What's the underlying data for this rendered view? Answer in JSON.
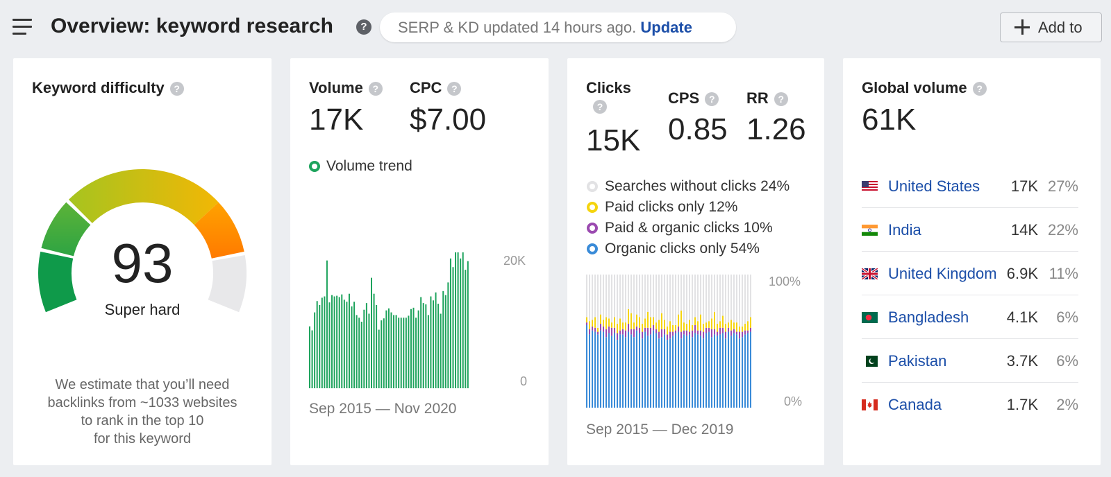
{
  "header": {
    "title": "Overview: keyword research",
    "serp_status": "SERP & KD updated 14 hours ago.",
    "update_label": "Update",
    "add_to_label": "Add to"
  },
  "keyword_difficulty": {
    "label": "Keyword difficulty",
    "value": "93",
    "value_num": 93,
    "rating": "Super hard",
    "note_lines": [
      "We estimate that you’ll need",
      "backlinks from ~1033 websites",
      "to rank in the top 10",
      "for this keyword"
    ],
    "colors": [
      "#0f9a4a",
      "#3fae3f",
      "#a6c41f",
      "#f2b705",
      "#ff8a00",
      "#e8e8ea"
    ]
  },
  "volume_card": {
    "volume_label": "Volume",
    "volume_value": "17K",
    "cpc_label": "CPC",
    "cpc_value": "$7.00",
    "trend_label": "Volume trend",
    "trend_color": "#1da35c",
    "axis_top": "20K",
    "axis_bottom": "0",
    "date_range": "Sep 2015 — Nov 2020"
  },
  "clicks_card": {
    "clicks_label": "Clicks",
    "clicks_value": "15K",
    "cps_label": "CPS",
    "cps_value": "0.85",
    "rr_label": "RR",
    "rr_value": "1.26",
    "legend": [
      {
        "label": "Searches without clicks 24%",
        "color": "#e2e2e4"
      },
      {
        "label": "Paid clicks only 12%",
        "color": "#f5d40e"
      },
      {
        "label": "Paid & organic clicks 10%",
        "color": "#9b4ab0"
      },
      {
        "label": "Organic clicks only 54%",
        "color": "#3a8bd8"
      }
    ],
    "axis_top": "100%",
    "axis_bottom": "0%",
    "date_range": "Sep 2015 — Dec 2019"
  },
  "global_volume": {
    "label": "Global volume",
    "value": "61K",
    "countries": [
      {
        "name": "United States",
        "volume": "17K",
        "share": "27%",
        "flag": "us-flag-icon"
      },
      {
        "name": "India",
        "volume": "14K",
        "share": "22%",
        "flag": "india-flag-icon"
      },
      {
        "name": "United Kingdom",
        "volume": "6.9K",
        "share": "11%",
        "flag": "uk-flag-icon"
      },
      {
        "name": "Bangladesh",
        "volume": "4.1K",
        "share": "6%",
        "flag": "bangladesh-flag-icon"
      },
      {
        "name": "Pakistan",
        "volume": "3.7K",
        "share": "6%",
        "flag": "pakistan-flag-icon"
      },
      {
        "name": "Canada",
        "volume": "1.7K",
        "share": "2%",
        "flag": "canada-flag-icon"
      }
    ]
  },
  "chart_data": [
    {
      "type": "bar",
      "title": "Volume trend",
      "x_range": [
        "Sep 2015",
        "Nov 2020"
      ],
      "ylim": [
        0,
        20000
      ],
      "yticks": [
        "0",
        "20K"
      ],
      "values": [
        9300,
        8700,
        11400,
        13100,
        12500,
        13600,
        13800,
        19200,
        12900,
        14000,
        13800,
        13900,
        13700,
        14100,
        13300,
        13000,
        14200,
        12300,
        13000,
        11000,
        10600,
        10000,
        11800,
        12800,
        11200,
        16600,
        14200,
        12500,
        8800,
        10200,
        10500,
        11700,
        12000,
        11400,
        11000,
        11000,
        10600,
        10600,
        10600,
        10600,
        10900,
        11900,
        12100,
        10600,
        11700,
        13700,
        12800,
        12600,
        11000,
        13800,
        13200,
        14400,
        12700,
        11200,
        14600,
        14000,
        15900,
        19500,
        18200,
        20600,
        20800,
        19500,
        20500,
        17800,
        19100
      ]
    },
    {
      "type": "bar",
      "title": "Clicks",
      "stacked": true,
      "x_range": [
        "Sep 2015",
        "Dec 2019"
      ],
      "ylim": [
        0,
        100
      ],
      "yticks": [
        "0%",
        "100%"
      ],
      "series": [
        {
          "name": "Organic clicks only",
          "values": [
            62,
            55,
            58,
            57,
            55,
            58,
            57,
            53,
            56,
            54,
            56,
            51,
            55,
            55,
            53,
            57,
            55,
            53,
            58,
            56,
            52,
            57,
            54,
            55,
            58,
            56,
            52,
            53,
            55,
            51,
            52,
            54,
            56,
            57,
            52,
            55,
            54,
            55,
            53,
            56,
            55,
            54,
            52,
            56,
            57,
            53,
            55,
            54,
            55,
            56,
            52,
            57,
            54,
            56,
            55,
            52,
            53,
            55,
            56,
            57
          ]
        },
        {
          "name": "Paid & organic clicks",
          "values": [
            2,
            4,
            3,
            3,
            2,
            5,
            4,
            6,
            5,
            6,
            4,
            5,
            3,
            4,
            5,
            6,
            4,
            6,
            3,
            4,
            5,
            3,
            6,
            5,
            4,
            3,
            5,
            6,
            4,
            4,
            5,
            3,
            2,
            4,
            5,
            3,
            4,
            2,
            5,
            6,
            3,
            4,
            5,
            4,
            3,
            6,
            4,
            3,
            5,
            4,
            5,
            3,
            4,
            3,
            2,
            5,
            4,
            3,
            2,
            3
          ]
        },
        {
          "name": "Paid clicks only",
          "values": [
            4,
            6,
            5,
            8,
            3,
            7,
            5,
            9,
            6,
            4,
            8,
            7,
            9,
            5,
            6,
            11,
            12,
            5,
            9,
            8,
            6,
            7,
            12,
            8,
            6,
            5,
            9,
            12,
            7,
            6,
            8,
            5,
            4,
            9,
            16,
            6,
            5,
            9,
            4,
            6,
            7,
            12,
            6,
            4,
            5,
            8,
            13,
            6,
            5,
            9,
            6,
            4,
            8,
            5,
            7,
            4,
            4,
            5,
            7,
            8
          ]
        },
        {
          "name": "Searches without clicks",
          "values": [
            32,
            35,
            34,
            32,
            40,
            30,
            34,
            32,
            33,
            36,
            32,
            37,
            33,
            36,
            36,
            26,
            29,
            36,
            30,
            32,
            37,
            33,
            28,
            32,
            32,
            36,
            34,
            29,
            34,
            39,
            35,
            38,
            38,
            30,
            27,
            36,
            37,
            34,
            38,
            32,
            35,
            30,
            37,
            36,
            35,
            33,
            28,
            37,
            35,
            31,
            37,
            36,
            34,
            36,
            36,
            39,
            39,
            37,
            35,
            32
          ]
        }
      ]
    }
  ]
}
